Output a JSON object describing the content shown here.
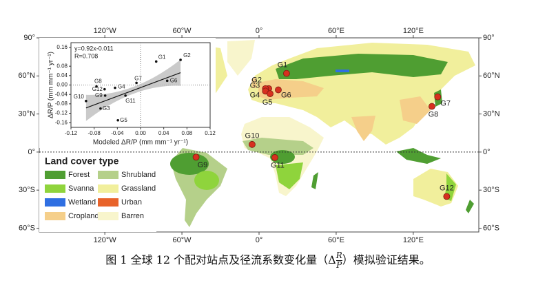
{
  "map": {
    "xlim": [
      -171,
      171
    ],
    "ylim": [
      -63,
      90
    ],
    "xticks": [
      {
        "value": -120,
        "label": "120°W"
      },
      {
        "value": -60,
        "label": "60°W"
      },
      {
        "value": 0,
        "label": "0°"
      },
      {
        "value": 60,
        "label": "60°E"
      },
      {
        "value": 120,
        "label": "120°E"
      }
    ],
    "yticks": [
      {
        "value": 90,
        "label": "90°"
      },
      {
        "value": 60,
        "label": "60°N"
      },
      {
        "value": 30,
        "label": "30°N"
      },
      {
        "value": 0,
        "label": "0°"
      },
      {
        "value": -30,
        "label": "30°S"
      },
      {
        "value": -60,
        "label": "60°S"
      }
    ]
  },
  "stations": [
    {
      "name": "G1",
      "lon": 21.4,
      "lat": 62,
      "modeled": 0.027,
      "observed": 0.1
    },
    {
      "name": "G2",
      "lon": 7.5,
      "lat": 50,
      "modeled": 0.069,
      "observed": 0.107
    },
    {
      "name": "G3",
      "lon": 5,
      "lat": 50,
      "modeled": -0.069,
      "observed": -0.1
    },
    {
      "name": "G4",
      "lon": 5,
      "lat": 48,
      "modeled": -0.044,
      "observed": -0.012
    },
    {
      "name": "G5",
      "lon": 8.6,
      "lat": 46,
      "modeled": -0.039,
      "observed": -0.15
    },
    {
      "name": "G6",
      "lon": 15,
      "lat": 49,
      "modeled": 0.046,
      "observed": 0.018
    },
    {
      "name": "G7",
      "lon": 139,
      "lat": 43.5,
      "modeled": -0.007,
      "observed": 0.009
    },
    {
      "name": "G8",
      "lon": 134.5,
      "lat": 36,
      "modeled": -0.076,
      "observed": -0.006
    },
    {
      "name": "G9",
      "lon": -49,
      "lat": -4,
      "modeled": -0.061,
      "observed": -0.045
    },
    {
      "name": "G10",
      "lon": -5.4,
      "lat": 6,
      "modeled": -0.094,
      "observed": -0.068
    },
    {
      "name": "G11",
      "lon": 12.3,
      "lat": -4.3,
      "modeled": -0.026,
      "observed": -0.045
    },
    {
      "name": "G12",
      "lon": 146,
      "lat": -35,
      "modeled": -0.062,
      "observed": -0.018
    }
  ],
  "scatter": {
    "type": "scatter",
    "xlim": [
      -0.12,
      0.12
    ],
    "ylim": [
      -0.18,
      0.18
    ],
    "xticks": [
      -0.12,
      -0.08,
      -0.04,
      {
        "value": 0,
        "label": "0.00"
      },
      0.04,
      0.08,
      0.12
    ],
    "yticks": [
      0.16,
      0.08,
      0.04,
      {
        "value": 0,
        "label": "0.00"
      },
      -0.04,
      -0.08,
      -0.12,
      -0.16
    ],
    "xlabel": "Modeled ΔR/P (mm mm⁻¹ yr⁻¹)",
    "ylabel": "ΔR/P (mm mm⁻¹ yr⁻¹)",
    "fit": {
      "label": "y=0.92x-0.011",
      "slope": 0.92,
      "intercept": -0.011,
      "r_label": "R=0.708"
    }
  },
  "legend": {
    "title": "Land cover type",
    "items": [
      {
        "name": "Forest",
        "color": "#4f9e32"
      },
      {
        "name": "Shrubland",
        "color": "#b5d08a"
      },
      {
        "name": "Svanna",
        "color": "#8fd43c"
      },
      {
        "name": "Grassland",
        "color": "#f1ef9c"
      },
      {
        "name": "Wetland",
        "color": "#2f6fe2"
      },
      {
        "name": "Urban",
        "color": "#e8632a"
      },
      {
        "name": "Cropland",
        "color": "#f5cf8a"
      },
      {
        "name": "Barren",
        "color": "#f8f5cc"
      }
    ]
  },
  "caption": {
    "before": "图 1 全球 12 个配对站点及径流系数变化量（Δ",
    "num": "R",
    "den": "P",
    "after": "）模拟验证结果。"
  }
}
